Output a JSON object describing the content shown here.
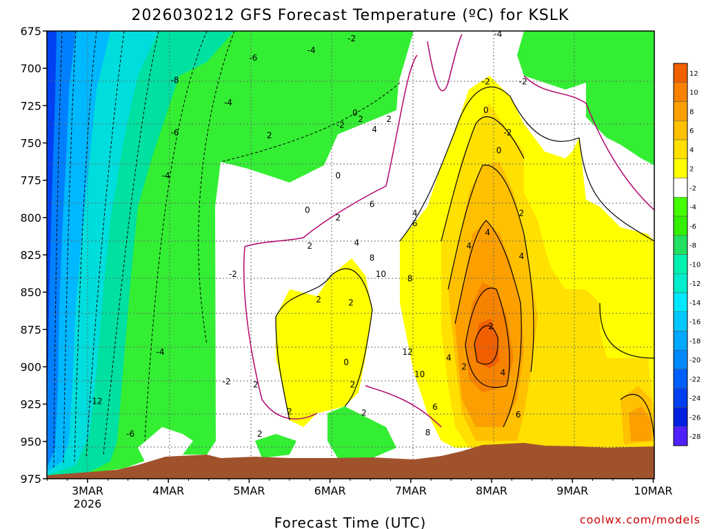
{
  "chart_data": {
    "type": "heatmap",
    "title": "2026030212 GFS Forecast Temperature (ºC) for KSLK",
    "xlabel": "Forecast Time (UTC)",
    "credit": "coolwx.com/models",
    "x_ticks": [
      {
        "label": "3MAR",
        "sub": "2026"
      },
      {
        "label": "4MAR",
        "sub": ""
      },
      {
        "label": "5MAR",
        "sub": ""
      },
      {
        "label": "6MAR",
        "sub": ""
      },
      {
        "label": "7MAR",
        "sub": ""
      },
      {
        "label": "8MAR",
        "sub": ""
      },
      {
        "label": "9MAR",
        "sub": ""
      },
      {
        "label": "10MAR",
        "sub": ""
      }
    ],
    "y_ticks": [
      "675",
      "700",
      "725",
      "750",
      "775",
      "800",
      "825",
      "850",
      "875",
      "900",
      "925",
      "950",
      "975"
    ],
    "ylim": [
      675,
      975
    ],
    "y_inverted": true,
    "grid": true,
    "colorbar": {
      "levels": [
        12,
        10,
        8,
        6,
        4,
        2,
        -2,
        -4,
        -6,
        -8,
        -10,
        -12,
        -14,
        -16,
        -18,
        -20,
        -22,
        -24,
        -26,
        -28
      ],
      "colors": [
        "#f06000",
        "#f68200",
        "#fba000",
        "#ffc000",
        "#ffe000",
        "#ffff00",
        "#ffffff",
        "#44ff00",
        "#33f000",
        "#22e060",
        "#00f0b0",
        "#00eecc",
        "#00e8ff",
        "#00c8ff",
        "#00a8ff",
        "#0088ff",
        "#0060ff",
        "#0040f0",
        "#0020e0",
        "#5020ff"
      ]
    },
    "contour_labels": [
      {
        "text": "-12",
        "day": 0.1,
        "p": 923
      },
      {
        "text": "-6",
        "day": 0.53,
        "p": 945
      },
      {
        "text": "-8",
        "day": 1.08,
        "p": 708
      },
      {
        "text": "-6",
        "day": 1.08,
        "p": 743
      },
      {
        "text": "-4",
        "day": 0.97,
        "p": 772
      },
      {
        "text": "-4",
        "day": 0.9,
        "p": 890
      },
      {
        "text": "-6",
        "day": 2.05,
        "p": 693
      },
      {
        "text": "-4",
        "day": 1.74,
        "p": 723
      },
      {
        "text": "-2",
        "day": 1.8,
        "p": 838
      },
      {
        "text": "-2",
        "day": 1.72,
        "p": 910
      },
      {
        "text": "2",
        "day": 2.08,
        "p": 912
      },
      {
        "text": "2",
        "day": 2.25,
        "p": 745
      },
      {
        "text": "-4",
        "day": 2.77,
        "p": 688
      },
      {
        "text": "-2",
        "day": 3.13,
        "p": 738
      },
      {
        "text": "0",
        "day": 3.1,
        "p": 772
      },
      {
        "text": "-2",
        "day": 3.27,
        "p": 680
      },
      {
        "text": "0",
        "day": 3.31,
        "p": 730
      },
      {
        "text": "2",
        "day": 3.38,
        "p": 734
      },
      {
        "text": "4",
        "day": 3.55,
        "p": 741
      },
      {
        "text": "2",
        "day": 3.73,
        "p": 734
      },
      {
        "text": "0",
        "day": 2.72,
        "p": 795
      },
      {
        "text": "2",
        "day": 3.1,
        "p": 800
      },
      {
        "text": "2",
        "day": 2.75,
        "p": 819
      },
      {
        "text": "2",
        "day": 2.86,
        "p": 855
      },
      {
        "text": "2",
        "day": 3.26,
        "p": 857
      },
      {
        "text": "2",
        "day": 3.28,
        "p": 912
      },
      {
        "text": "0",
        "day": 3.2,
        "p": 897
      },
      {
        "text": "2",
        "day": 3.42,
        "p": 931
      },
      {
        "text": "2",
        "day": 2.5,
        "p": 930
      },
      {
        "text": "2",
        "day": 2.13,
        "p": 945
      },
      {
        "text": "4",
        "day": 3.33,
        "p": 817
      },
      {
        "text": "6",
        "day": 3.52,
        "p": 791
      },
      {
        "text": "8",
        "day": 3.52,
        "p": 827
      },
      {
        "text": "10",
        "day": 3.63,
        "p": 838
      },
      {
        "text": "8",
        "day": 3.99,
        "p": 841
      },
      {
        "text": "6",
        "day": 4.05,
        "p": 804
      },
      {
        "text": "4",
        "day": 4.05,
        "p": 797
      },
      {
        "text": "12",
        "day": 3.96,
        "p": 890
      },
      {
        "text": "10",
        "day": 4.11,
        "p": 905
      },
      {
        "text": "8",
        "day": 4.21,
        "p": 944
      },
      {
        "text": "6",
        "day": 4.3,
        "p": 927
      },
      {
        "text": "4",
        "day": 4.47,
        "p": 894
      },
      {
        "text": "2",
        "day": 4.66,
        "p": 900
      },
      {
        "text": "4",
        "day": 4.72,
        "p": 819
      },
      {
        "text": "4",
        "day": 4.95,
        "p": 810
      },
      {
        "text": "2",
        "day": 4.99,
        "p": 873
      },
      {
        "text": "4",
        "day": 5.14,
        "p": 904
      },
      {
        "text": "2",
        "day": 5.37,
        "p": 797
      },
      {
        "text": "4",
        "day": 5.37,
        "p": 826
      },
      {
        "text": "6",
        "day": 5.33,
        "p": 932
      },
      {
        "text": "-2",
        "day": 4.93,
        "p": 709
      },
      {
        "text": "0",
        "day": 4.93,
        "p": 728
      },
      {
        "text": "-2",
        "day": 5.2,
        "p": 743
      },
      {
        "text": "0",
        "day": 5.09,
        "p": 755
      },
      {
        "text": "-2",
        "day": 5.39,
        "p": 709
      },
      {
        "text": "-4",
        "day": 5.08,
        "p": 677
      }
    ]
  }
}
